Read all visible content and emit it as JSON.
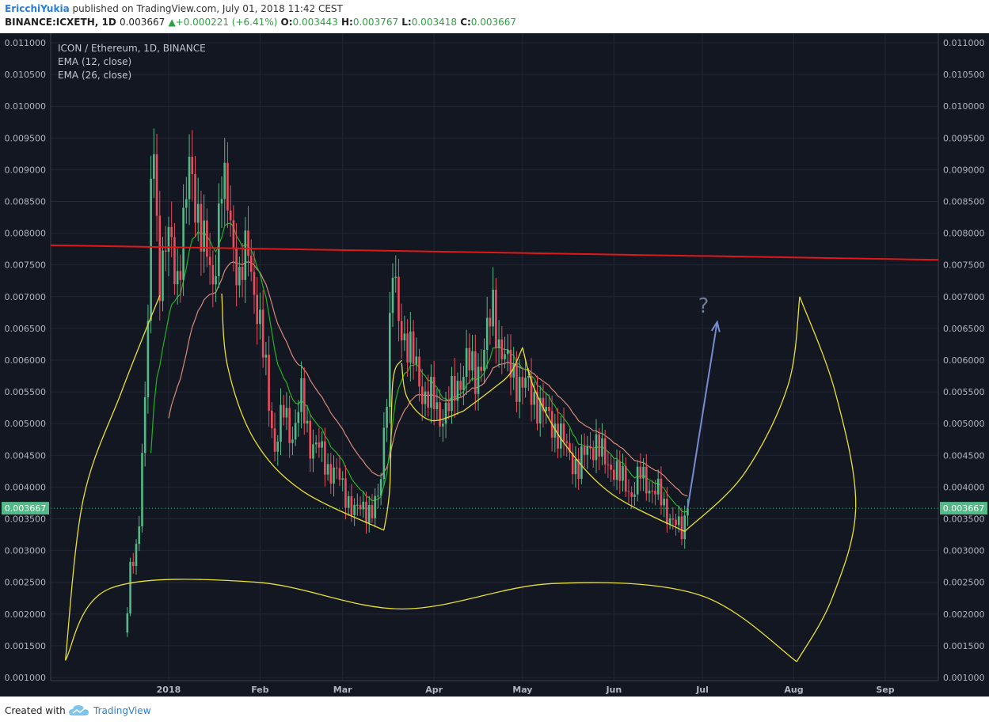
{
  "header": {
    "author": "EricchiYukia",
    "published": "published on TradingView.com, July 01, 2018 11:42 CEST",
    "symbol": "BINANCE:ICXETH, 1D",
    "last": "0.003667",
    "change": "+0.000221 (+6.41%)",
    "o_label": "O:",
    "o": "0.003443",
    "h_label": "H:",
    "h": "0.003767",
    "l_label": "L:",
    "l": "0.003418",
    "c_label": "C:",
    "c": "0.003667"
  },
  "footer": {
    "created_with": "Created with",
    "brand": "TradingView"
  },
  "colors": {
    "background": "#131722",
    "up": "#53b987",
    "down": "#eb4d5c",
    "ema12": "#23b323",
    "ema26": "#d98a7a",
    "resistance": "#e01818",
    "pattern": "#e8e035",
    "projection": "#7a8ad0",
    "price_tag": "#53b987"
  },
  "chart_data": {
    "type": "candlestick",
    "title": "ICON / Ethereum, 1D, BINANCE",
    "legend": [
      "EMA (12, close)",
      "EMA (26, close)"
    ],
    "ylim": [
      0.00095,
      0.01115
    ],
    "y_ticks": [
      "0.011000",
      "0.010500",
      "0.010000",
      "0.009500",
      "0.009000",
      "0.008500",
      "0.008000",
      "0.007500",
      "0.007000",
      "0.006500",
      "0.006000",
      "0.005500",
      "0.005000",
      "0.004500",
      "0.004000",
      "0.003500",
      "0.003000",
      "0.002500",
      "0.002000",
      "0.001500",
      "0.001000"
    ],
    "x_ticks": [
      {
        "label": "2018",
        "day": 0
      },
      {
        "label": "Feb",
        "day": 31
      },
      {
        "label": "Mar",
        "day": 59
      },
      {
        "label": "Apr",
        "day": 90
      },
      {
        "label": "May",
        "day": 120
      },
      {
        "label": "Jun",
        "day": 151
      },
      {
        "label": "Jul",
        "day": 181
      },
      {
        "label": "Aug",
        "day": 212
      },
      {
        "label": "Sep",
        "day": 243
      }
    ],
    "xlim_days": [
      -40,
      261
    ],
    "current_price": "0.003667",
    "current_value": 0.003667,
    "question_mark": "?",
    "close_keypoints": [
      [
        -14,
        0.002
      ],
      [
        -13,
        0.0027
      ],
      [
        -12,
        0.0028
      ],
      [
        -11,
        0.003
      ],
      [
        -10,
        0.0036
      ],
      [
        -9,
        0.0045
      ],
      [
        -8,
        0.0055
      ],
      [
        -7,
        0.0065
      ],
      [
        -6,
        0.0085
      ],
      [
        -5,
        0.0095
      ],
      [
        -4,
        0.0081
      ],
      [
        -3,
        0.0074
      ],
      [
        0,
        0.0079
      ],
      [
        3,
        0.0073
      ],
      [
        6,
        0.0085
      ],
      [
        7,
        0.009
      ],
      [
        9,
        0.0086
      ],
      [
        12,
        0.0078
      ],
      [
        15,
        0.0072
      ],
      [
        18,
        0.0088
      ],
      [
        21,
        0.0082
      ],
      [
        24,
        0.0072
      ],
      [
        27,
        0.0078
      ],
      [
        30,
        0.0068
      ],
      [
        33,
        0.0058
      ],
      [
        36,
        0.0046
      ],
      [
        39,
        0.0052
      ],
      [
        42,
        0.0048
      ],
      [
        45,
        0.0054
      ],
      [
        48,
        0.0047
      ],
      [
        51,
        0.0046
      ],
      [
        54,
        0.0043
      ],
      [
        57,
        0.0042
      ],
      [
        60,
        0.0039
      ],
      [
        63,
        0.0036
      ],
      [
        66,
        0.0037
      ],
      [
        69,
        0.0036
      ],
      [
        71,
        0.0038
      ],
      [
        72,
        0.0042
      ],
      [
        74,
        0.0056
      ],
      [
        76,
        0.0074
      ],
      [
        78,
        0.0066
      ],
      [
        80,
        0.0064
      ],
      [
        83,
        0.006
      ],
      [
        86,
        0.0055
      ],
      [
        89,
        0.0054
      ],
      [
        92,
        0.0051
      ],
      [
        95,
        0.0053
      ],
      [
        98,
        0.0056
      ],
      [
        101,
        0.006
      ],
      [
        104,
        0.0057
      ],
      [
        107,
        0.0062
      ],
      [
        110,
        0.0068
      ],
      [
        112,
        0.0063
      ],
      [
        115,
        0.0059
      ],
      [
        118,
        0.0057
      ],
      [
        121,
        0.0056
      ],
      [
        124,
        0.0054
      ],
      [
        127,
        0.0052
      ],
      [
        130,
        0.005
      ],
      [
        133,
        0.0048
      ],
      [
        136,
        0.0045
      ],
      [
        139,
        0.0043
      ],
      [
        142,
        0.0046
      ],
      [
        145,
        0.0047
      ],
      [
        148,
        0.0044
      ],
      [
        151,
        0.0043
      ],
      [
        154,
        0.0041
      ],
      [
        157,
        0.0039
      ],
      [
        160,
        0.0042
      ],
      [
        163,
        0.004
      ],
      [
        166,
        0.0039
      ],
      [
        169,
        0.0036
      ],
      [
        172,
        0.0034
      ],
      [
        174,
        0.0033
      ],
      [
        176,
        0.003667
      ]
    ],
    "resistance_line": [
      [
        -40,
        0.00781
      ],
      [
        261,
        0.00758
      ]
    ],
    "projection_arrow": [
      [
        176,
        0.003667
      ],
      [
        186,
        0.0066
      ]
    ],
    "pattern_curves": [
      {
        "name": "left-wing-outer",
        "points": [
          [
            -3,
            0.00702
          ],
          [
            -16,
            0.0055
          ],
          [
            -29,
            0.0038
          ],
          [
            -35,
            0.00127
          ]
        ],
        "smooth": true
      },
      {
        "name": "left-wing-inner",
        "points": [
          [
            18,
            0.00705
          ],
          [
            20,
            0.0059
          ],
          [
            29,
            0.00475
          ],
          [
            45,
            0.00395
          ],
          [
            73,
            0.00332
          ]
        ],
        "smooth": true
      },
      {
        "name": "center-left",
        "points": [
          [
            73,
            0.00332
          ],
          [
            75,
            0.004
          ],
          [
            76,
            0.00565
          ],
          [
            79,
            0.006
          ]
        ],
        "smooth": true
      },
      {
        "name": "ear-left",
        "points": [
          [
            79,
            0.00595
          ],
          [
            81,
            0.0054
          ],
          [
            89,
            0.00505
          ],
          [
            100,
            0.0052
          ]
        ],
        "smooth": true
      },
      {
        "name": "ear-right",
        "points": [
          [
            100,
            0.0052
          ],
          [
            110,
            0.00555
          ],
          [
            116,
            0.0058
          ],
          [
            120,
            0.0062
          ]
        ],
        "smooth": true
      },
      {
        "name": "center-right",
        "points": [
          [
            120,
            0.0062
          ],
          [
            124,
            0.00555
          ],
          [
            134,
            0.0047
          ],
          [
            150,
            0.0039
          ],
          [
            175,
            0.0033
          ]
        ],
        "smooth": true
      },
      {
        "name": "right-wing-inner",
        "points": [
          [
            175,
            0.0033
          ],
          [
            195,
            0.0042
          ],
          [
            210,
            0.0056
          ],
          [
            214,
            0.007
          ]
        ],
        "smooth": true
      },
      {
        "name": "right-wing-outer",
        "points": [
          [
            214,
            0.007
          ],
          [
            226,
            0.0055
          ],
          [
            233,
            0.0037
          ],
          [
            225,
            0.00225
          ],
          [
            213,
            0.00125
          ]
        ],
        "smooth": true
      },
      {
        "name": "bottom",
        "points": [
          [
            -35,
            0.00127
          ],
          [
            -20,
            0.0024
          ],
          [
            30,
            0.0025
          ],
          [
            79,
            0.00208
          ],
          [
            130,
            0.00248
          ],
          [
            180,
            0.0023
          ],
          [
            213,
            0.00125
          ]
        ],
        "smooth": true
      }
    ]
  }
}
